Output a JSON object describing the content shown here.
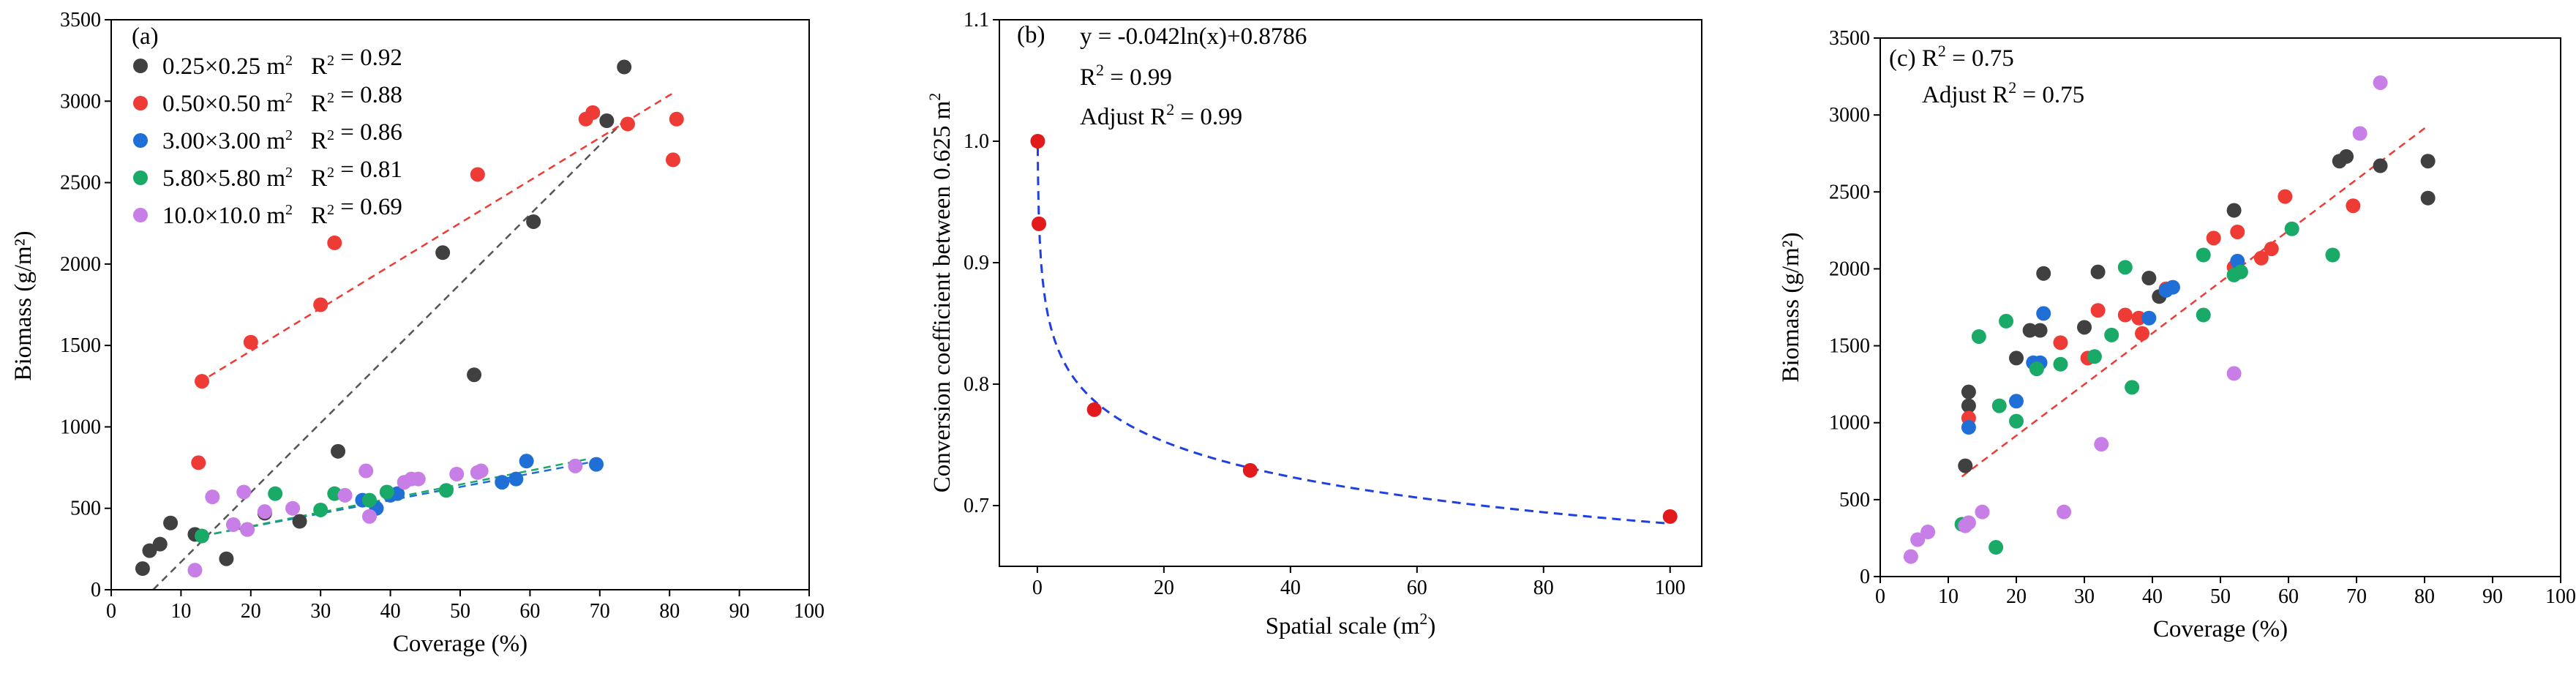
{
  "chart_data": [
    {
      "id": "a",
      "type": "scatter",
      "panel_label": "(a)",
      "xlabel": "Coverage (%)",
      "ylabel": "Biomass (g/m²)",
      "xlim": [
        0,
        100
      ],
      "ylim": [
        0,
        3500
      ],
      "x_ticks": [
        0,
        10,
        20,
        30,
        40,
        50,
        60,
        70,
        80,
        90,
        100
      ],
      "y_ticks": [
        0,
        500,
        1000,
        1500,
        2000,
        2500,
        3000,
        3500
      ],
      "legend_position": "top-left",
      "series": [
        {
          "name": "0.25×0.25 m²",
          "r2_label": "R² = 0.92",
          "color": "#404040",
          "trend_color": "#555555",
          "trend": [
            [
              6,
              0
            ],
            [
              73.5,
              2880
            ]
          ],
          "points": [
            [
              4.5,
              130
            ],
            [
              5.5,
              240
            ],
            [
              7,
              280
            ],
            [
              8.5,
              410
            ],
            [
              12,
              340
            ],
            [
              16.5,
              190
            ],
            [
              22,
              470
            ],
            [
              27,
              420
            ],
            [
              32.5,
              850
            ],
            [
              47.5,
              2070
            ],
            [
              52,
              1320
            ],
            [
              60.5,
              2260
            ],
            [
              71,
              2880
            ],
            [
              73.5,
              3210
            ]
          ]
        },
        {
          "name": "0.50×0.50 m²",
          "r2_label": "R² = 0.88",
          "color": "#ef3b36",
          "trend_color": "#ef3b36",
          "trend": [
            [
              12.5,
              1270
            ],
            [
              80.5,
              3050
            ]
          ],
          "points": [
            [
              12.5,
              780
            ],
            [
              13,
              1280
            ],
            [
              20,
              1520
            ],
            [
              30,
              1750
            ],
            [
              32,
              2130
            ],
            [
              52.5,
              2550
            ],
            [
              68,
              2890
            ],
            [
              69,
              2930
            ],
            [
              74,
              2860
            ],
            [
              80.5,
              2640
            ],
            [
              81,
              2890
            ]
          ]
        },
        {
          "name": "3.00×3.00 m²",
          "r2_label": "R² = 0.86",
          "color": "#1f6fd6",
          "trend_color": "#1f6fd6",
          "trend": [
            [
              13,
              330
            ],
            [
              69.5,
              790
            ]
          ],
          "points": [
            [
              36,
              550
            ],
            [
              38,
              500
            ],
            [
              40,
              580
            ],
            [
              41,
              590
            ],
            [
              56,
              660
            ],
            [
              58,
              680
            ],
            [
              59.5,
              790
            ],
            [
              69.5,
              770
            ]
          ]
        },
        {
          "name": "5.80×5.80 m²",
          "r2_label": "R² = 0.81",
          "color": "#1aaa68",
          "trend_color": "#1aaa68",
          "trend": [
            [
              13,
              330
            ],
            [
              68,
              800
            ]
          ],
          "points": [
            [
              13,
              330
            ],
            [
              19.5,
              370
            ],
            [
              23.5,
              590
            ],
            [
              30,
              490
            ],
            [
              32,
              590
            ],
            [
              37,
              550
            ],
            [
              39.5,
              600
            ],
            [
              48,
              610
            ]
          ]
        },
        {
          "name": "10.0×10.0 m²",
          "r2_label": "R² = 0.69",
          "color": "#c77ee6",
          "trend_color": "#c77ee6",
          "trend": [],
          "points": [
            [
              12,
              120
            ],
            [
              14.5,
              570
            ],
            [
              17.5,
              400
            ],
            [
              19,
              600
            ],
            [
              19.5,
              370
            ],
            [
              22,
              480
            ],
            [
              26,
              500
            ],
            [
              33.5,
              580
            ],
            [
              36.5,
              730
            ],
            [
              37,
              450
            ],
            [
              42,
              660
            ],
            [
              43,
              680
            ],
            [
              44,
              680
            ],
            [
              49.5,
              710
            ],
            [
              52.5,
              720
            ],
            [
              53,
              730
            ],
            [
              66.5,
              760
            ]
          ]
        }
      ]
    },
    {
      "id": "b",
      "type": "scatter",
      "panel_label": "(b)",
      "xlabel": "Spatial scale (m²)",
      "ylabel": "Conversion coefficient between 0.625 m²",
      "xlim": [
        -6,
        105
      ],
      "ylim": [
        0.65,
        1.1
      ],
      "x_ticks": [
        0,
        20,
        40,
        60,
        80,
        100
      ],
      "y_ticks": [
        0.7,
        0.8,
        0.9,
        1.0,
        1.1
      ],
      "y_tick_labels": [
        "0.7",
        "0.8",
        "0.9",
        "1.0",
        "1.1"
      ],
      "equation": "y = -0.042ln(x)+0.8786",
      "r2": "R² = 0.99",
      "adjust_r2": "Adjust R² = 0.99",
      "point_color": "#e31a1c",
      "curve_color": "#1f3fe0",
      "points": [
        [
          0.0625,
          1.0
        ],
        [
          0.25,
          0.932
        ],
        [
          9,
          0.779
        ],
        [
          33.64,
          0.729
        ],
        [
          100,
          0.691
        ]
      ],
      "fit": {
        "a": -0.042,
        "b": 0.8786,
        "x_from": 0.0625,
        "x_to": 100
      }
    },
    {
      "id": "c",
      "type": "scatter",
      "panel_label": "(c) R² = 0.75",
      "adjust_r2": "Adjust R² = 0.75",
      "xlabel": "Coverage (%)",
      "ylabel": "Biomass (g/m²)",
      "xlim": [
        0,
        100
      ],
      "ylim": [
        0,
        3500
      ],
      "x_ticks": [
        0,
        10,
        20,
        30,
        40,
        50,
        60,
        70,
        80,
        90,
        100
      ],
      "y_ticks": [
        0,
        500,
        1000,
        1500,
        2000,
        2500,
        3000,
        3500
      ],
      "trend_color": "#ef3b36",
      "trend": [
        [
          12,
          650
        ],
        [
          80.5,
          2930
        ]
      ],
      "series": [
        {
          "name": "0.25×0.25 m²",
          "color": "#404040",
          "points": [
            [
              12.5,
              720
            ],
            [
              13,
              1110
            ],
            [
              13,
              1200
            ],
            [
              20,
              1420
            ],
            [
              22,
              1600
            ],
            [
              23.5,
              1600
            ],
            [
              24,
              1970
            ],
            [
              30,
              1620
            ],
            [
              32,
              1980
            ],
            [
              39.5,
              1940
            ],
            [
              41,
              1820
            ],
            [
              52,
              2380
            ],
            [
              67.5,
              2700
            ],
            [
              68.5,
              2730
            ],
            [
              73.5,
              2670
            ],
            [
              80.5,
              2460
            ],
            [
              80.5,
              2700
            ]
          ]
        },
        {
          "name": "0.50×0.50 m²",
          "color": "#ef3b36",
          "points": [
            [
              13,
              1030
            ],
            [
              26.5,
              1520
            ],
            [
              30.5,
              1420
            ],
            [
              32,
              1730
            ],
            [
              36,
              1700
            ],
            [
              38,
              1680
            ],
            [
              38.5,
              1580
            ],
            [
              42,
              1870
            ],
            [
              49,
              2200
            ],
            [
              52,
              2010
            ],
            [
              52.5,
              2240
            ],
            [
              56,
              2070
            ],
            [
              57.5,
              2130
            ],
            [
              59.5,
              2470
            ],
            [
              69.5,
              2410
            ]
          ]
        },
        {
          "name": "3.00×3.00 m²",
          "color": "#1f6fd6",
          "points": [
            [
              13,
              970
            ],
            [
              20,
              1140
            ],
            [
              22.5,
              1390
            ],
            [
              23.5,
              1390
            ],
            [
              24,
              1710
            ],
            [
              39.5,
              1680
            ],
            [
              42,
              1860
            ],
            [
              43,
              1880
            ],
            [
              52.5,
              2050
            ]
          ]
        },
        {
          "name": "5.80×5.80 m²",
          "color": "#1aaa68",
          "points": [
            [
              12,
              340
            ],
            [
              14.5,
              1560
            ],
            [
              17,
              190
            ],
            [
              17.5,
              1110
            ],
            [
              18.5,
              1660
            ],
            [
              20,
              1010
            ],
            [
              23,
              1350
            ],
            [
              26.5,
              1380
            ],
            [
              31.5,
              1430
            ],
            [
              34,
              1570
            ],
            [
              36,
              2010
            ],
            [
              37,
              1230
            ],
            [
              47.5,
              2090
            ],
            [
              47.5,
              1700
            ],
            [
              52,
              1960
            ],
            [
              53,
              1980
            ],
            [
              60.5,
              2260
            ],
            [
              66.5,
              2090
            ]
          ]
        },
        {
          "name": "10.0×10.0 m²",
          "color": "#c77ee6",
          "points": [
            [
              4.5,
              130
            ],
            [
              5.5,
              240
            ],
            [
              7,
              290
            ],
            [
              12.5,
              330
            ],
            [
              13,
              350
            ],
            [
              15,
              420
            ],
            [
              27,
              420
            ],
            [
              32.5,
              860
            ],
            [
              52,
              1320
            ],
            [
              70.5,
              2880
            ],
            [
              73.5,
              3210
            ]
          ]
        }
      ]
    }
  ]
}
